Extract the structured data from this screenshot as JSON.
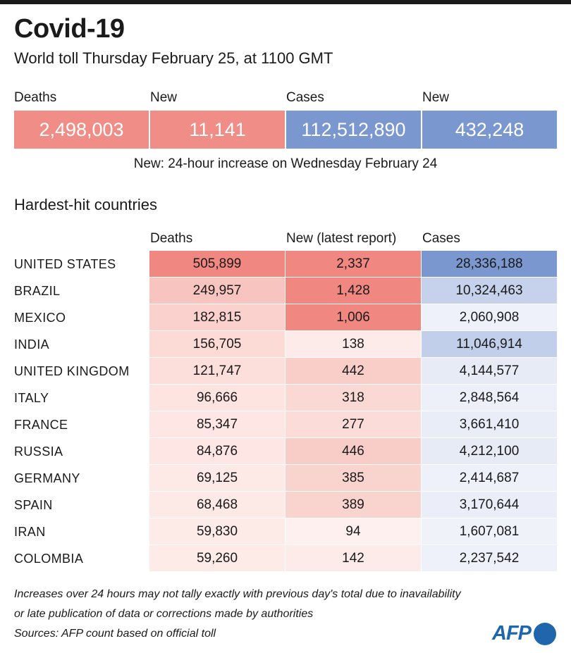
{
  "header": {
    "title": "Covid-19",
    "subtitle": "World toll Thursday February 25,  at 1100 GMT"
  },
  "summary": {
    "labels": [
      "Deaths",
      "New",
      "Cases",
      "New"
    ],
    "values": [
      "2,498,003",
      "11,141",
      "112,512,890",
      "432,248"
    ],
    "colors": [
      "#f08d87",
      "#f08d87",
      "#7b97cf",
      "#7b97cf"
    ],
    "note": "New: 24-hour increase on Wednesday February 24"
  },
  "table": {
    "title": "Hardest-hit countries",
    "columns": [
      "Deaths",
      "New (latest report)",
      "Cases"
    ],
    "rows": [
      {
        "country": "UNITED STATES",
        "deaths": "505,899",
        "new": "2,337",
        "cases": "28,336,188",
        "c": [
          "#f08780",
          "#f08780",
          "#7b97cf"
        ]
      },
      {
        "country": "BRAZIL",
        "deaths": "249,957",
        "new": "1,428",
        "cases": "10,324,463",
        "c": [
          "#f8c4bf",
          "#f08780",
          "#c6d2ec"
        ]
      },
      {
        "country": "MEXICO",
        "deaths": "182,815",
        "new": "1,006",
        "cases": "2,060,908",
        "c": [
          "#fad1cd",
          "#f08780",
          "#eef1f9"
        ]
      },
      {
        "country": "INDIA",
        "deaths": "156,705",
        "new": "138",
        "cases": "11,046,914",
        "c": [
          "#fcdad6",
          "#fdebe9",
          "#c2cfea"
        ]
      },
      {
        "country": "UNITED KINGDOM",
        "deaths": "121,747",
        "new": "442",
        "cases": "4,144,577",
        "c": [
          "#fcdeda",
          "#f9cec9",
          "#e6ebf6"
        ]
      },
      {
        "country": "ITALY",
        "deaths": "96,666",
        "new": "318",
        "cases": "2,848,564",
        "c": [
          "#fde4e1",
          "#fad9d5",
          "#edf0f8"
        ]
      },
      {
        "country": "FRANCE",
        "deaths": "85,347",
        "new": "277",
        "cases": "3,661,410",
        "c": [
          "#fde6e3",
          "#fbdcd8",
          "#e9edf7"
        ]
      },
      {
        "country": "RUSSIA",
        "deaths": "84,876",
        "new": "446",
        "cases": "4,212,100",
        "c": [
          "#fde6e3",
          "#f8cdc8",
          "#e6ebf6"
        ]
      },
      {
        "country": "GERMANY",
        "deaths": "69,125",
        "new": "385",
        "cases": "2,414,687",
        "c": [
          "#fde9e6",
          "#f9d3ce",
          "#eef1f9"
        ]
      },
      {
        "country": "SPAIN",
        "deaths": "68,468",
        "new": "389",
        "cases": "3,170,644",
        "c": [
          "#fde9e6",
          "#f9d3ce",
          "#ebeef8"
        ]
      },
      {
        "country": "IRAN",
        "deaths": "59,830",
        "new": "94",
        "cases": "1,607,081",
        "c": [
          "#fdebe8",
          "#fdf0ee",
          "#f0f2f9"
        ]
      },
      {
        "country": "COLOMBIA",
        "deaths": "59,260",
        "new": "142",
        "cases": "2,237,542",
        "c": [
          "#fdebe8",
          "#fdebe9",
          "#eef1f9"
        ]
      }
    ]
  },
  "footer": {
    "notes": [
      "Increases over 24 hours may not tally exactly with previous day's total due to inavailability",
      "or late publication of data or corrections made by authorities",
      "Sources: AFP count based on official toll"
    ],
    "logo": "AFP"
  }
}
